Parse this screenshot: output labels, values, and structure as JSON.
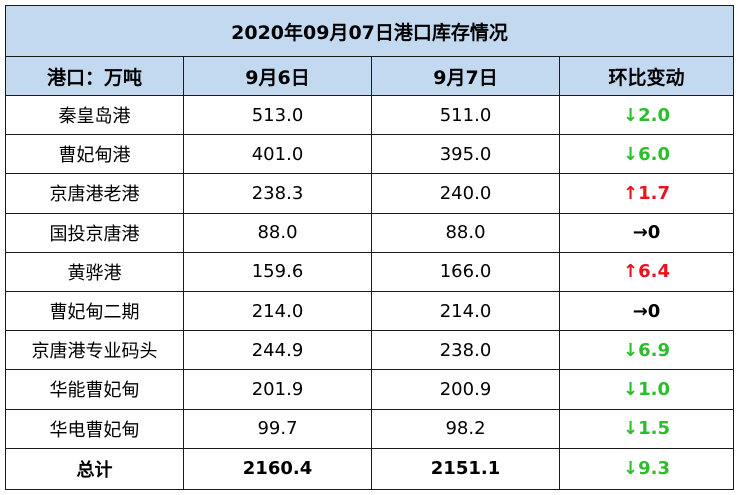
{
  "title": "2020年09月07日港口库存情况",
  "headers": [
    "港口：万吨",
    "9月6日",
    "9月7日",
    "环比变动"
  ],
  "rows": [
    {
      "port": "秦皇岛港",
      "d6": "513.0",
      "d7": "511.0",
      "change": "↓2.0",
      "dir": "down"
    },
    {
      "port": "曹妃甸港",
      "d6": "401.0",
      "d7": "395.0",
      "change": "↓6.0",
      "dir": "down"
    },
    {
      "port": "京唐港老港",
      "d6": "238.3",
      "d7": "240.0",
      "change": "↑1.7",
      "dir": "up"
    },
    {
      "port": "国投京唐港",
      "d6": "88.0",
      "d7": "88.0",
      "change": "→0",
      "dir": "flat"
    },
    {
      "port": "黄骅港",
      "d6": "159.6",
      "d7": "166.0",
      "change": "↑6.4",
      "dir": "up"
    },
    {
      "port": "曹妃甸二期",
      "d6": "214.0",
      "d7": "214.0",
      "change": "→0",
      "dir": "flat"
    },
    {
      "port": "京唐港专业码头",
      "d6": "244.9",
      "d7": "238.0",
      "change": "↓6.9",
      "dir": "down"
    },
    {
      "port": "华能曹妃甸",
      "d6": "201.9",
      "d7": "200.9",
      "change": "↓1.0",
      "dir": "down"
    },
    {
      "port": "华电曹妃甸",
      "d6": "99.7",
      "d7": "98.2",
      "change": "↓1.5",
      "dir": "down"
    }
  ],
  "total": {
    "port": "总计",
    "d6": "2160.4",
    "d7": "2151.1",
    "change": "↓9.3",
    "dir": "down"
  },
  "colors": {
    "header_bg": "#c3d9f0",
    "down": "#2bbd2b",
    "up": "#e8141c",
    "flat": "#000000"
  }
}
